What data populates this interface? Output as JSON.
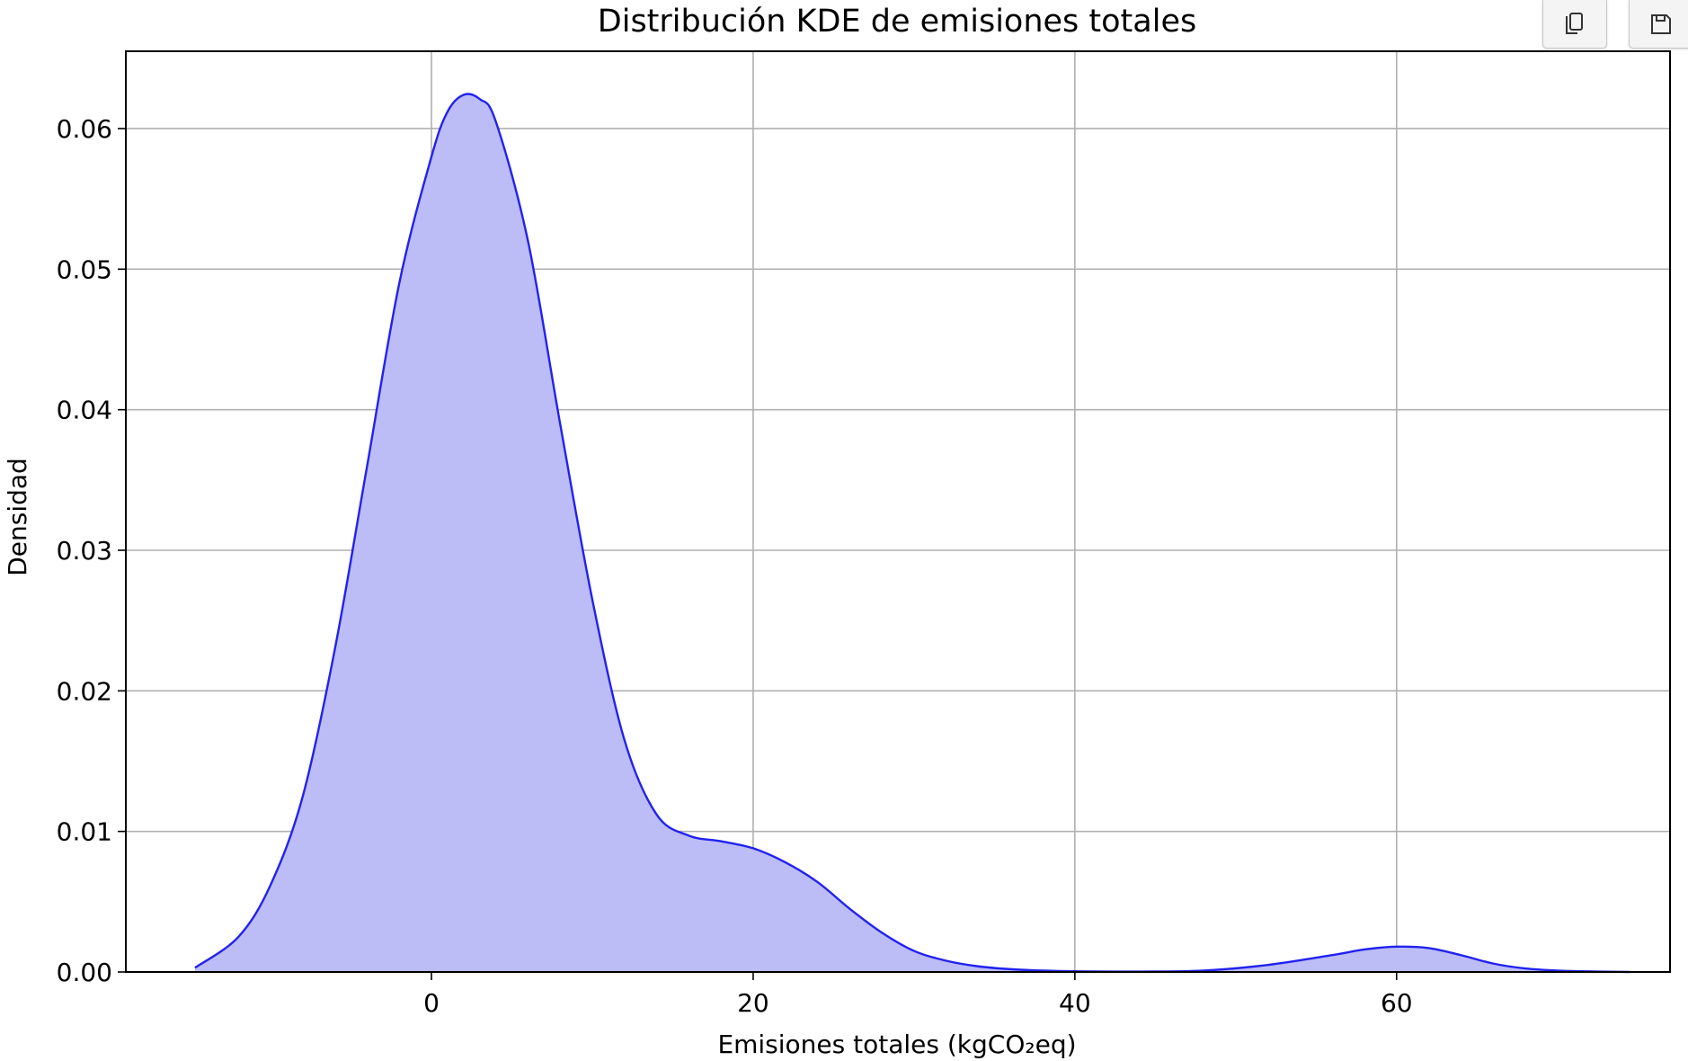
{
  "toolbar": {
    "copy_icon": "copy-icon",
    "save_icon": "save-icon"
  },
  "chart_data": {
    "type": "area",
    "title": "Distribución KDE de emisiones totales",
    "xlabel": "Emisiones totales (kgCO₂eq)",
    "ylabel": "Densidad",
    "xlim": [
      -19,
      77
    ],
    "ylim": [
      0,
      0.0655
    ],
    "xticks": [
      0,
      20,
      40,
      60
    ],
    "yticks": [
      0.0,
      0.01,
      0.02,
      0.03,
      0.04,
      0.05,
      0.06
    ],
    "ytick_labels": [
      "0.00",
      "0.01",
      "0.02",
      "0.03",
      "0.04",
      "0.05",
      "0.06"
    ],
    "grid": true,
    "line_color": "#2222ee",
    "fill_color": "#bcbcf6",
    "series": [
      {
        "x": [
          -14.7,
          -12,
          -10,
          -8,
          -6,
          -4,
          -2,
          0,
          1,
          2,
          3,
          4,
          6,
          8,
          10,
          12,
          14,
          16,
          18,
          20,
          22,
          24,
          26,
          28,
          30,
          32,
          34,
          36,
          38,
          40,
          44,
          48,
          52,
          56,
          58,
          60,
          62,
          64,
          66,
          68,
          70,
          72,
          74.5
        ],
        "y": [
          0.0003,
          0.0025,
          0.0062,
          0.0125,
          0.023,
          0.036,
          0.049,
          0.058,
          0.0612,
          0.0624,
          0.0621,
          0.0605,
          0.052,
          0.039,
          0.0265,
          0.0165,
          0.0112,
          0.0097,
          0.0093,
          0.0088,
          0.0078,
          0.0064,
          0.0045,
          0.0028,
          0.0015,
          0.0008,
          0.0004,
          0.0002,
          0.0001,
          5e-05,
          3e-05,
          0.0001,
          0.0005,
          0.0012,
          0.0016,
          0.0018,
          0.0017,
          0.0012,
          0.0006,
          0.00025,
          0.0001,
          4e-05,
          0.0
        ]
      }
    ]
  }
}
